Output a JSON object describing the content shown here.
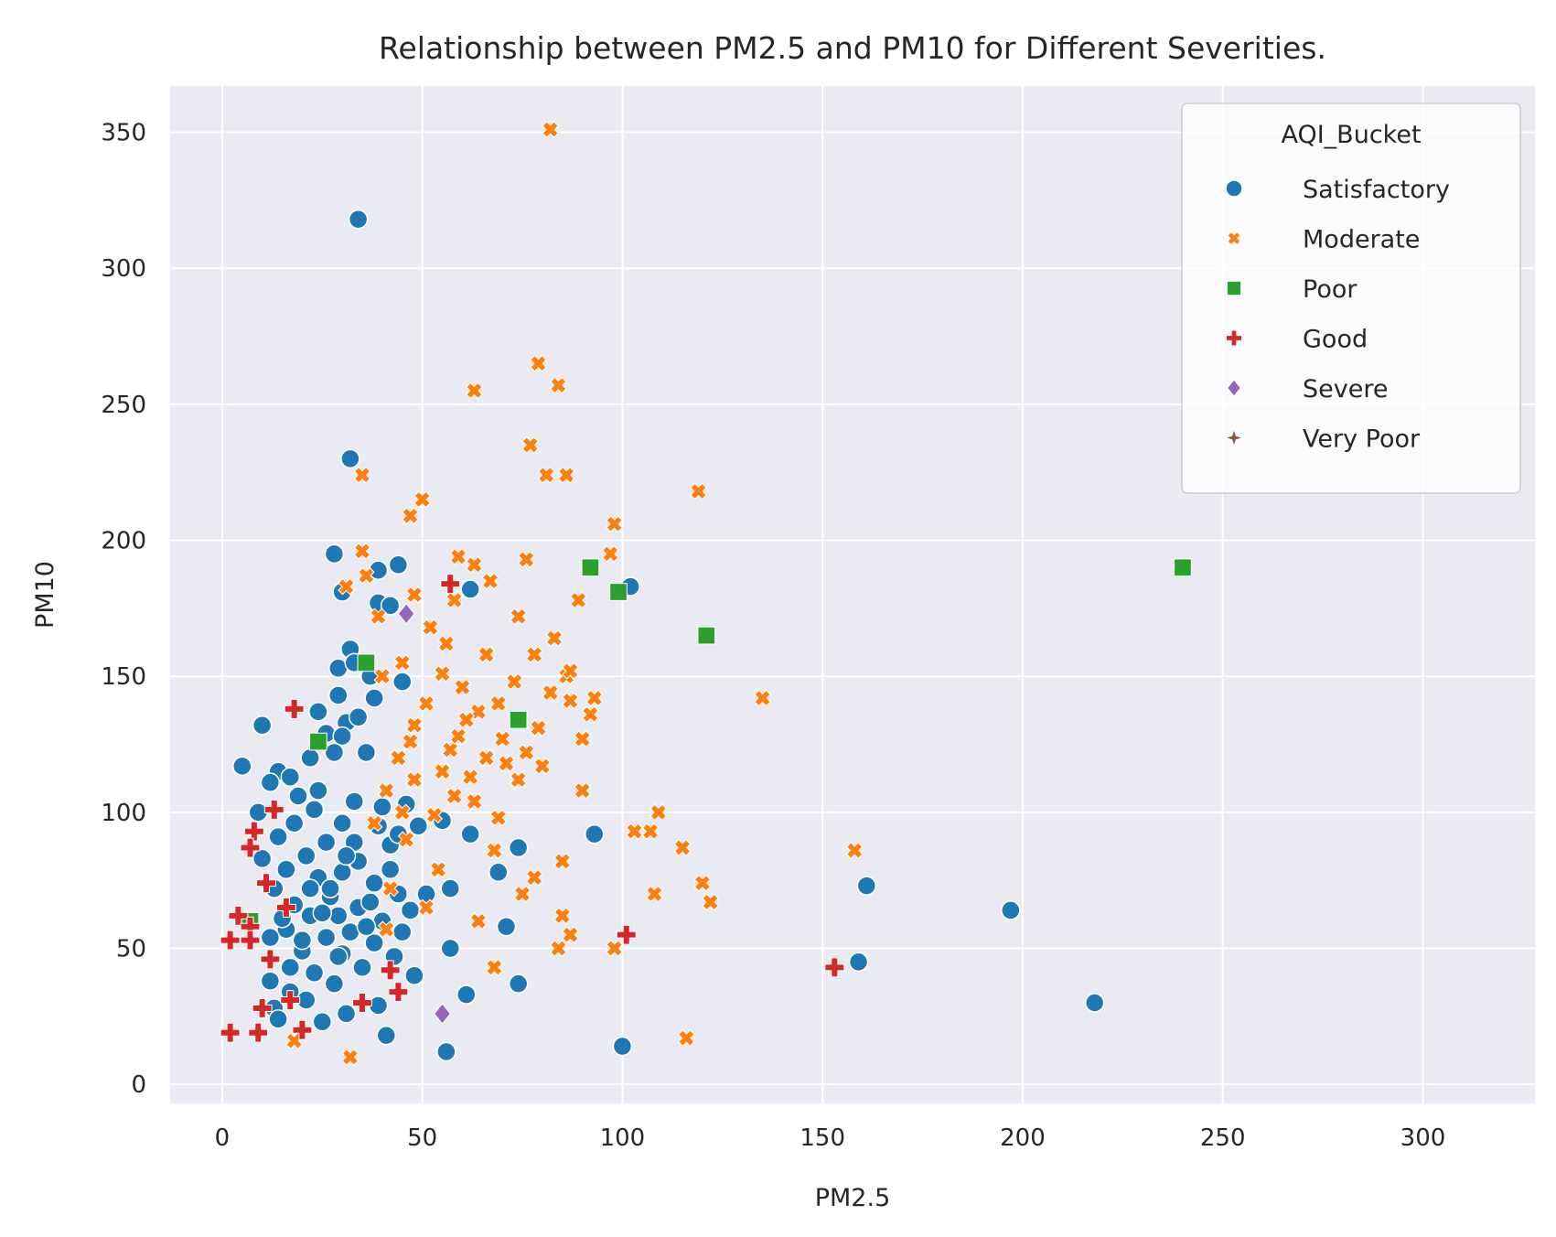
{
  "chart_data": {
    "type": "scatter",
    "title": "Relationship between PM2.5 and PM10 for Different Severities.",
    "xlabel": "PM2.5",
    "ylabel": "PM10",
    "xlim": [
      -13,
      328
    ],
    "ylim": [
      -7,
      367
    ],
    "xticks": [
      0,
      50,
      100,
      150,
      200,
      250,
      300
    ],
    "yticks": [
      0,
      50,
      100,
      150,
      200,
      250,
      300,
      350
    ],
    "grid": true,
    "legend": {
      "title": "AQI_Bucket",
      "placement": "top-right"
    },
    "series": [
      {
        "name": "Satisfactory",
        "marker": "circle",
        "color": "#1f77b4",
        "points": [
          [
            34,
            318
          ],
          [
            32,
            230
          ],
          [
            28,
            195
          ],
          [
            44,
            191
          ],
          [
            39,
            189
          ],
          [
            62,
            182
          ],
          [
            102,
            183
          ],
          [
            30,
            181
          ],
          [
            39,
            177
          ],
          [
            42,
            176
          ],
          [
            32,
            160
          ],
          [
            29,
            153
          ],
          [
            33,
            155
          ],
          [
            37,
            150
          ],
          [
            45,
            148
          ],
          [
            38,
            142
          ],
          [
            29,
            143
          ],
          [
            24,
            137
          ],
          [
            31,
            133
          ],
          [
            34,
            135
          ],
          [
            10,
            132
          ],
          [
            26,
            129
          ],
          [
            30,
            128
          ],
          [
            22,
            120
          ],
          [
            28,
            122
          ],
          [
            36,
            122
          ],
          [
            5,
            117
          ],
          [
            14,
            115
          ],
          [
            17,
            113
          ],
          [
            12,
            111
          ],
          [
            24,
            108
          ],
          [
            19,
            106
          ],
          [
            33,
            104
          ],
          [
            40,
            102
          ],
          [
            46,
            103
          ],
          [
            23,
            101
          ],
          [
            9,
            100
          ],
          [
            30,
            96
          ],
          [
            39,
            95
          ],
          [
            55,
            97
          ],
          [
            49,
            95
          ],
          [
            62,
            92
          ],
          [
            93,
            92
          ],
          [
            14,
            91
          ],
          [
            26,
            89
          ],
          [
            42,
            88
          ],
          [
            74,
            87
          ],
          [
            21,
            84
          ],
          [
            10,
            83
          ],
          [
            34,
            82
          ],
          [
            16,
            79
          ],
          [
            30,
            78
          ],
          [
            69,
            78
          ],
          [
            24,
            76
          ],
          [
            38,
            74
          ],
          [
            161,
            73
          ],
          [
            13,
            72
          ],
          [
            57,
            72
          ],
          [
            44,
            70
          ],
          [
            27,
            69
          ],
          [
            51,
            70
          ],
          [
            18,
            66
          ],
          [
            34,
            65
          ],
          [
            47,
            64
          ],
          [
            197,
            64
          ],
          [
            22,
            62
          ],
          [
            29,
            62
          ],
          [
            40,
            60
          ],
          [
            71,
            58
          ],
          [
            16,
            57
          ],
          [
            32,
            56
          ],
          [
            45,
            56
          ],
          [
            12,
            54
          ],
          [
            26,
            54
          ],
          [
            38,
            52
          ],
          [
            57,
            50
          ],
          [
            20,
            49
          ],
          [
            30,
            48
          ],
          [
            43,
            47
          ],
          [
            159,
            45
          ],
          [
            17,
            43
          ],
          [
            35,
            43
          ],
          [
            23,
            41
          ],
          [
            48,
            40
          ],
          [
            12,
            38
          ],
          [
            28,
            37
          ],
          [
            74,
            37
          ],
          [
            17,
            34
          ],
          [
            61,
            33
          ],
          [
            21,
            31
          ],
          [
            39,
            29
          ],
          [
            218,
            30
          ],
          [
            13,
            28
          ],
          [
            31,
            26
          ],
          [
            14,
            24
          ],
          [
            25,
            23
          ],
          [
            41,
            18
          ],
          [
            100,
            14
          ],
          [
            56,
            12
          ],
          [
            20,
            53
          ],
          [
            27,
            72
          ],
          [
            33,
            89
          ],
          [
            36,
            58
          ],
          [
            42,
            79
          ],
          [
            18,
            96
          ],
          [
            25,
            63
          ],
          [
            31,
            84
          ],
          [
            37,
            67
          ],
          [
            44,
            92
          ],
          [
            29,
            47
          ],
          [
            15,
            61
          ],
          [
            22,
            72
          ]
        ]
      },
      {
        "name": "Moderate",
        "marker": "x",
        "color": "#ff7f0e",
        "points": [
          [
            82,
            351
          ],
          [
            79,
            265
          ],
          [
            84,
            257
          ],
          [
            63,
            255
          ],
          [
            77,
            235
          ],
          [
            35,
            224
          ],
          [
            81,
            224
          ],
          [
            86,
            224
          ],
          [
            50,
            215
          ],
          [
            47,
            209
          ],
          [
            119,
            218
          ],
          [
            98,
            206
          ],
          [
            35,
            196
          ],
          [
            59,
            194
          ],
          [
            97,
            195
          ],
          [
            63,
            191
          ],
          [
            76,
            193
          ],
          [
            67,
            185
          ],
          [
            31,
            183
          ],
          [
            48,
            180
          ],
          [
            89,
            178
          ],
          [
            58,
            178
          ],
          [
            39,
            172
          ],
          [
            74,
            172
          ],
          [
            83,
            164
          ],
          [
            66,
            158
          ],
          [
            78,
            158
          ],
          [
            45,
            155
          ],
          [
            86,
            150
          ],
          [
            55,
            151
          ],
          [
            60,
            146
          ],
          [
            73,
            148
          ],
          [
            87,
            141
          ],
          [
            93,
            142
          ],
          [
            135,
            142
          ],
          [
            51,
            140
          ],
          [
            64,
            137
          ],
          [
            92,
            136
          ],
          [
            79,
            131
          ],
          [
            48,
            132
          ],
          [
            70,
            127
          ],
          [
            90,
            127
          ],
          [
            57,
            123
          ],
          [
            44,
            120
          ],
          [
            66,
            120
          ],
          [
            80,
            117
          ],
          [
            48,
            112
          ],
          [
            62,
            113
          ],
          [
            74,
            112
          ],
          [
            41,
            108
          ],
          [
            58,
            106
          ],
          [
            90,
            108
          ],
          [
            109,
            100
          ],
          [
            53,
            99
          ],
          [
            69,
            98
          ],
          [
            38,
            96
          ],
          [
            103,
            93
          ],
          [
            107,
            93
          ],
          [
            46,
            90
          ],
          [
            115,
            87
          ],
          [
            68,
            86
          ],
          [
            158,
            86
          ],
          [
            85,
            82
          ],
          [
            54,
            79
          ],
          [
            78,
            76
          ],
          [
            120,
            74
          ],
          [
            42,
            72
          ],
          [
            75,
            70
          ],
          [
            108,
            70
          ],
          [
            122,
            67
          ],
          [
            51,
            65
          ],
          [
            85,
            62
          ],
          [
            64,
            60
          ],
          [
            87,
            55
          ],
          [
            84,
            50
          ],
          [
            98,
            50
          ],
          [
            68,
            43
          ],
          [
            41,
            57
          ],
          [
            18,
            16
          ],
          [
            32,
            10
          ],
          [
            116,
            17
          ],
          [
            36,
            187
          ],
          [
            52,
            168
          ],
          [
            56,
            162
          ],
          [
            40,
            150
          ],
          [
            61,
            134
          ],
          [
            47,
            126
          ],
          [
            71,
            118
          ],
          [
            55,
            115
          ],
          [
            45,
            100
          ],
          [
            63,
            104
          ],
          [
            82,
            144
          ],
          [
            87,
            152
          ],
          [
            76,
            122
          ],
          [
            69,
            140
          ],
          [
            59,
            128
          ]
        ]
      },
      {
        "name": "Poor",
        "marker": "square",
        "color": "#2ca02c",
        "points": [
          [
            92,
            190
          ],
          [
            99,
            181
          ],
          [
            121,
            165
          ],
          [
            240,
            190
          ],
          [
            36,
            155
          ],
          [
            74,
            134
          ],
          [
            7,
            60
          ],
          [
            24,
            126
          ]
        ]
      },
      {
        "name": "Good",
        "marker": "plus",
        "color": "#d62728",
        "points": [
          [
            18,
            138
          ],
          [
            13,
            101
          ],
          [
            8,
            93
          ],
          [
            7,
            87
          ],
          [
            4,
            62
          ],
          [
            7,
            58
          ],
          [
            2,
            53
          ],
          [
            7,
            53
          ],
          [
            101,
            55
          ],
          [
            153,
            43
          ],
          [
            42,
            42
          ],
          [
            44,
            34
          ],
          [
            17,
            31
          ],
          [
            35,
            30
          ],
          [
            2,
            19
          ],
          [
            9,
            19
          ],
          [
            20,
            20
          ],
          [
            10,
            28
          ],
          [
            57,
            184
          ],
          [
            12,
            46
          ],
          [
            16,
            65
          ],
          [
            11,
            74
          ]
        ]
      },
      {
        "name": "Severe",
        "marker": "diamond",
        "color": "#9467bd",
        "points": [
          [
            55,
            26
          ],
          [
            46,
            173
          ]
        ]
      },
      {
        "name": "Very Poor",
        "marker": "star",
        "color": "#8c564b",
        "points": []
      }
    ]
  }
}
